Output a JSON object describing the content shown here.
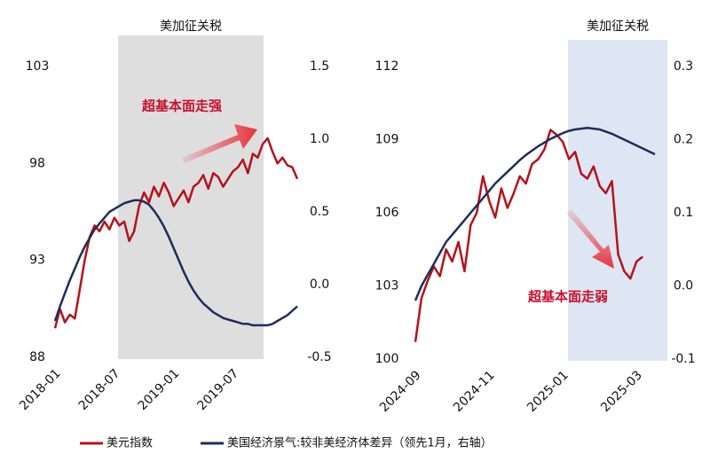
{
  "chart_data": [
    {
      "type": "line",
      "shade_label": "美加征关税",
      "annotation": "超基本面走强",
      "categories": [
        "2018-01",
        null,
        null,
        null,
        null,
        null,
        null,
        null,
        null,
        null,
        null,
        null,
        "2018-07",
        null,
        null,
        null,
        null,
        null,
        null,
        null,
        null,
        null,
        null,
        null,
        "2019-01",
        null,
        null,
        null,
        null,
        null,
        null,
        null,
        null,
        null,
        null,
        null,
        "2019-07",
        null,
        null,
        null,
        null,
        null,
        null,
        null,
        null,
        null,
        null,
        null,
        null,
        null
      ],
      "ylim": [
        88,
        103
      ],
      "yticks": [
        88,
        93,
        98,
        103
      ],
      "y2lim": [
        -0.5,
        1.5
      ],
      "y2ticks": [
        -0.5,
        {
          "value": 0,
          "label": "0.0"
        },
        0.5,
        {
          "value": 1,
          "label": "1.0"
        },
        1.5
      ],
      "series": [
        {
          "name": "美元指数",
          "color": "#b5121b",
          "values": [
            89.5,
            90.5,
            89.8,
            90.2,
            90.0,
            91.5,
            93.0,
            94.2,
            94.8,
            94.5,
            95.0,
            94.6,
            95.2,
            94.8,
            95.0,
            94.0,
            94.5,
            95.8,
            96.5,
            96.0,
            96.8,
            96.3,
            97.0,
            96.5,
            95.8,
            96.2,
            96.6,
            96.0,
            96.8,
            97.0,
            97.4,
            96.7,
            97.5,
            97.3,
            96.8,
            97.2,
            97.6,
            97.8,
            98.2,
            97.5,
            98.5,
            98.3,
            99.0,
            99.3,
            98.6,
            98.0,
            98.3,
            97.9,
            97.8,
            97.2
          ]
        },
        {
          "name": "美国经济景气:较非美经济体差异（领先1月，右轴）",
          "color": "#1f2d5a",
          "axis": "y2",
          "values": [
            -0.25,
            -0.15,
            -0.06,
            0.03,
            0.11,
            0.19,
            0.26,
            0.32,
            0.38,
            0.42,
            0.46,
            0.5,
            0.52,
            0.54,
            0.56,
            0.57,
            0.58,
            0.58,
            0.57,
            0.55,
            0.51,
            0.46,
            0.4,
            0.33,
            0.25,
            0.17,
            0.09,
            0.02,
            -0.04,
            -0.09,
            -0.13,
            -0.16,
            -0.19,
            -0.21,
            -0.23,
            -0.24,
            -0.25,
            -0.26,
            -0.27,
            -0.27,
            -0.28,
            -0.28,
            -0.28,
            -0.28,
            -0.27,
            -0.25,
            -0.23,
            -0.21,
            -0.18,
            -0.15
          ]
        }
      ]
    },
    {
      "type": "line",
      "shade_label": "美加征关税",
      "annotation": "超基本面走弱",
      "categories": [
        "2024-09",
        null,
        null,
        null,
        null,
        null,
        null,
        null,
        null,
        null,
        null,
        null,
        "2024-11",
        null,
        null,
        null,
        null,
        null,
        null,
        null,
        null,
        null,
        null,
        null,
        "2025-01",
        null,
        null,
        null,
        null,
        null,
        null,
        null,
        null,
        null,
        null,
        null,
        "2025-03",
        null,
        null,
        null
      ],
      "ylim": [
        100,
        112
      ],
      "yticks": [
        100,
        103,
        106,
        109,
        112
      ],
      "y2lim": [
        -0.1,
        0.3
      ],
      "y2ticks": [
        -0.1,
        {
          "value": 0,
          "label": "0.0"
        },
        0.1,
        0.2,
        0.3
      ],
      "series": [
        {
          "color": "#b5121b",
          "values": [
            100.7,
            102.5,
            103.2,
            103.8,
            103.4,
            104.5,
            104.0,
            104.8,
            103.6,
            105.5,
            106.0,
            107.5,
            106.5,
            105.8,
            107.0,
            106.2,
            106.8,
            107.5,
            107.2,
            108.0,
            108.2,
            108.6,
            109.4,
            109.2,
            108.9,
            108.2,
            108.5,
            107.6,
            107.4,
            107.9,
            107.1,
            106.8,
            107.3,
            104.3,
            103.6,
            103.3,
            104.0,
            104.2,
            null,
            null
          ]
        },
        {
          "color": "#1f2d5a",
          "axis": "y2",
          "values": [
            -0.02,
            0.0,
            0.015,
            0.03,
            0.045,
            0.06,
            0.07,
            0.08,
            0.09,
            0.1,
            0.11,
            0.12,
            0.13,
            0.14,
            0.148,
            0.156,
            0.164,
            0.172,
            0.179,
            0.185,
            0.191,
            0.196,
            0.201,
            0.205,
            0.209,
            0.212,
            0.214,
            0.215,
            0.216,
            0.215,
            0.214,
            0.211,
            0.208,
            0.204,
            0.2,
            0.196,
            0.192,
            0.188,
            0.184,
            0.18
          ]
        }
      ]
    }
  ]
}
